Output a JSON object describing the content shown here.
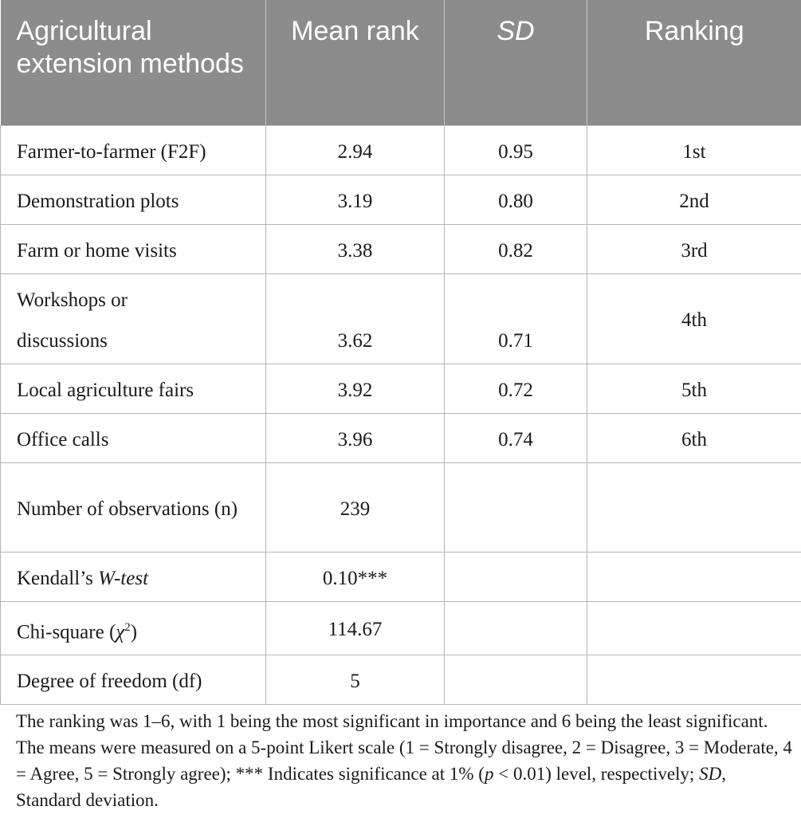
{
  "table": {
    "headers": {
      "method": "Agricultural extension methods",
      "mean_rank": "Mean rank",
      "sd": "SD",
      "ranking": "Ranking"
    },
    "rows": [
      {
        "method": "Farmer-to-farmer (F2F)",
        "mean_rank": "2.94",
        "sd": "0.95",
        "ranking": "1st"
      },
      {
        "method": "Demonstration plots",
        "mean_rank": "3.19",
        "sd": "0.80",
        "ranking": "2nd"
      },
      {
        "method": "Farm or home visits",
        "mean_rank": "3.38",
        "sd": "0.82",
        "ranking": "3rd"
      },
      {
        "method": "Workshops or discussions",
        "mean_rank": "3.62",
        "sd": "0.71",
        "ranking": "4th"
      },
      {
        "method": "Local agriculture fairs",
        "mean_rank": "3.92",
        "sd": "0.72",
        "ranking": "5th"
      },
      {
        "method": "Office calls",
        "mean_rank": "3.96",
        "sd": "0.74",
        "ranking": "6th"
      }
    ],
    "stats": {
      "observations": {
        "label": "Number of observations (n)",
        "value": "239"
      },
      "kendall": {
        "label_prefix": "Kendall’s ",
        "label_italic": "W-test",
        "value": "0.10***"
      },
      "chi_square": {
        "label_prefix": "Chi-square (",
        "label_symbol": "χ",
        "label_sup": "2",
        "label_suffix": ")",
        "value": "114.67"
      },
      "df": {
        "label": "Degree of freedom (df)",
        "value": "5"
      }
    }
  },
  "footnote": {
    "part1": "The ranking was 1–6, with 1 being the most significant in importance and 6 being the least significant. The means were measured on a 5-point Likert scale (1 = Strongly disagree, 2 = Disagree, 3 = Moderate, 4 = Agree, 5 = Strongly agree); *** Indicates significance at 1% (",
    "p_symbol": "p",
    "part2": " < 0.01) level, respectively; ",
    "sd_abbr": "SD",
    "part3": ", Standard deviation."
  }
}
